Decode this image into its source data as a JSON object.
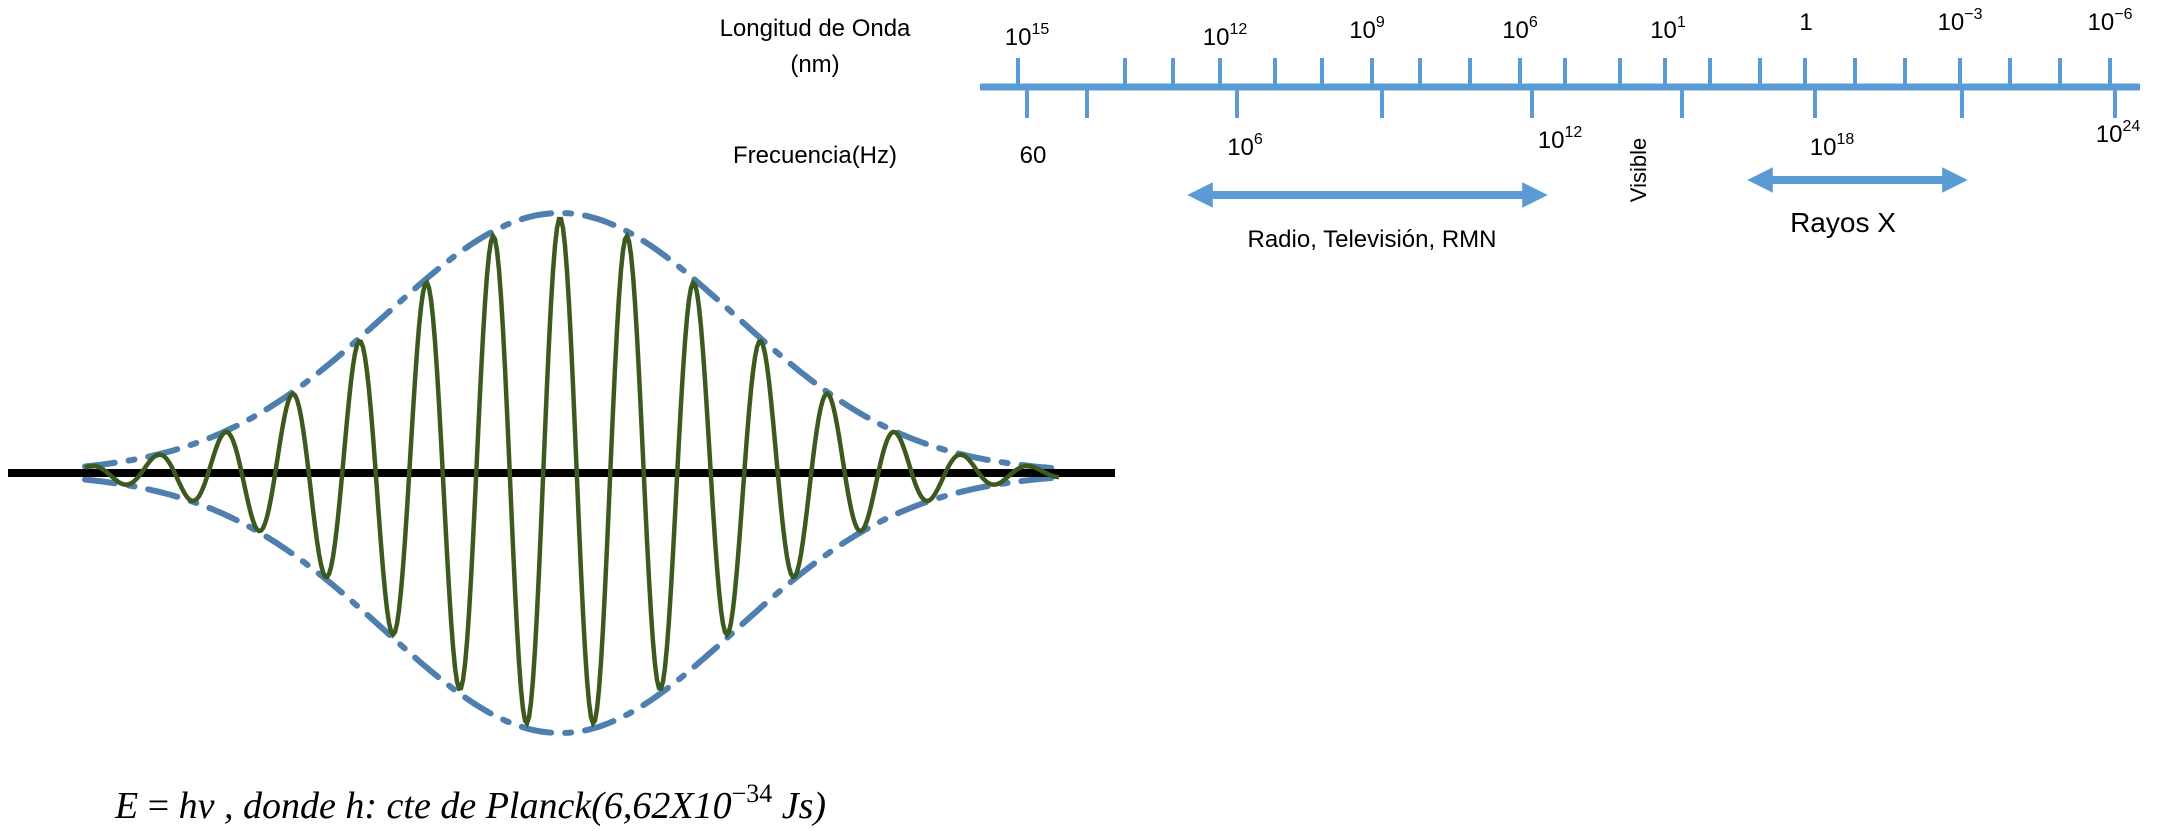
{
  "spectrum": {
    "wavelength_label_line1": "Longitud de Onda",
    "wavelength_label_line2": "(nm)",
    "frequency_label": "Frecuencia(Hz)",
    "visible_label": "Visible",
    "wavelength_ticks": [
      {
        "base": "10",
        "exp": "15"
      },
      {
        "base": "10",
        "exp": "12"
      },
      {
        "base": "10",
        "exp": "9"
      },
      {
        "base": "10",
        "exp": "6"
      },
      {
        "base": "10",
        "exp": "1"
      },
      {
        "base": "1",
        "exp": ""
      },
      {
        "base": "10",
        "exp": "−3"
      },
      {
        "base": "10",
        "exp": "−6"
      }
    ],
    "frequency_ticks": [
      {
        "base": "60",
        "exp": ""
      },
      {
        "base": "10",
        "exp": "6"
      },
      {
        "base": "10",
        "exp": "12"
      },
      {
        "base": "10",
        "exp": "18"
      },
      {
        "base": "10",
        "exp": "24"
      }
    ],
    "ranges": [
      {
        "label": "Radio, Televisión, RMN"
      },
      {
        "label": "Rayos X"
      }
    ],
    "colors": {
      "axis": "#5b9bd5",
      "wave": "#3d5a1e",
      "envelope": "#4f7fae"
    }
  },
  "equation": {
    "lhs": "E",
    "eq": " = ",
    "rhs": "hν",
    "middle": " , donde h: cte de Planck(6,62X10",
    "exp": "−34",
    "unit": " Js)"
  }
}
